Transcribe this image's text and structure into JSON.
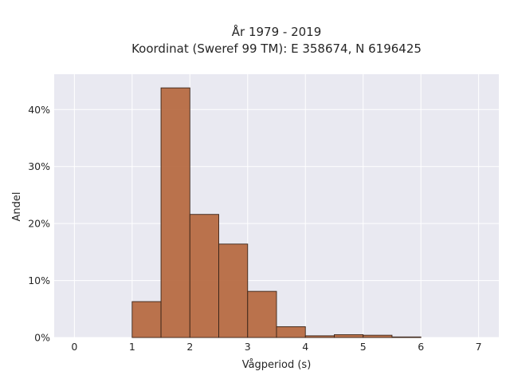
{
  "chart_data": {
    "type": "bar",
    "title_line1": "År 1979 - 2019",
    "title_line2": "Koordinat (Sweref 99 TM): E 358674, N 6196425",
    "xlabel": "Vågperiod (s)",
    "ylabel": "Andel",
    "xlim": [
      -0.35,
      7.35
    ],
    "ylim": [
      0,
      46.2
    ],
    "xticks": [
      0,
      1,
      2,
      3,
      4,
      5,
      6,
      7
    ],
    "xtick_labels": [
      "0",
      "1",
      "2",
      "3",
      "4",
      "5",
      "6",
      "7"
    ],
    "yticks": [
      0,
      10,
      20,
      30,
      40
    ],
    "ytick_labels": [
      "0%",
      "10%",
      "20%",
      "30%",
      "40%"
    ],
    "bin_width": 0.5,
    "bins": [
      {
        "start": 1.0,
        "end": 1.5,
        "value": 6.3
      },
      {
        "start": 1.5,
        "end": 2.0,
        "value": 43.8
      },
      {
        "start": 2.0,
        "end": 2.5,
        "value": 21.6
      },
      {
        "start": 2.5,
        "end": 3.0,
        "value": 16.4
      },
      {
        "start": 3.0,
        "end": 3.5,
        "value": 8.1
      },
      {
        "start": 3.5,
        "end": 4.0,
        "value": 1.9
      },
      {
        "start": 4.0,
        "end": 4.5,
        "value": 0.3
      },
      {
        "start": 4.5,
        "end": 5.0,
        "value": 0.5
      },
      {
        "start": 5.0,
        "end": 5.5,
        "value": 0.4
      },
      {
        "start": 5.5,
        "end": 6.0,
        "value": 0.1
      }
    ],
    "grid": true,
    "legend": "none",
    "colors": {
      "bar_fill": "#b5673e",
      "bar_edge": "#3a2418",
      "plot_background": "#e9e9f1",
      "grid": "#ffffff"
    }
  }
}
